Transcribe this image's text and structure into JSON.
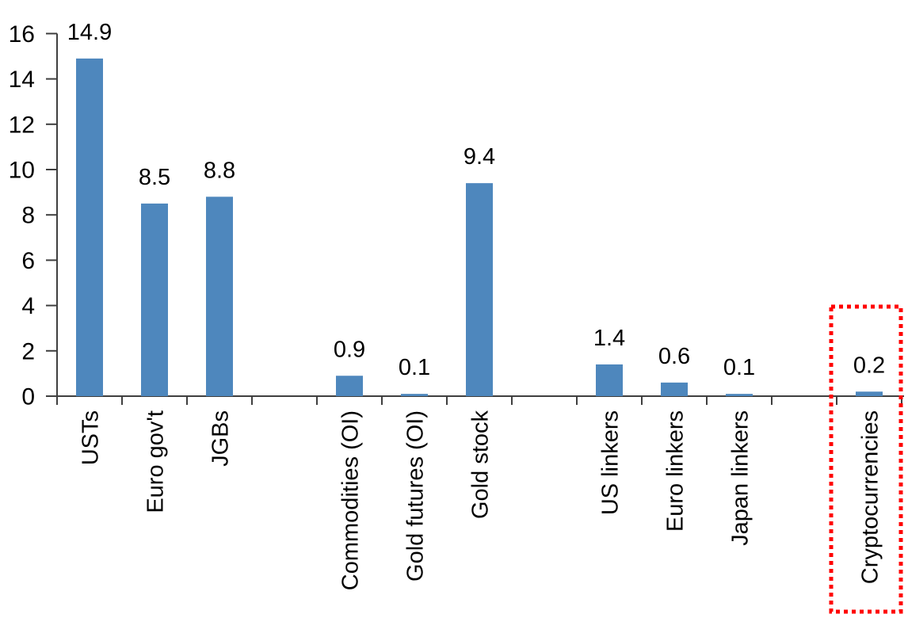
{
  "chart_data": {
    "type": "bar",
    "title": "",
    "xlabel": "",
    "ylabel": "",
    "groups": [
      {
        "categories": [
          "USTs",
          "Euro gov't",
          "JGBs"
        ],
        "values": [
          14.9,
          8.5,
          8.8
        ]
      },
      {
        "categories": [
          "Commodities (OI)",
          "Gold futures (OI)",
          "Gold stock"
        ],
        "values": [
          0.9,
          0.1,
          9.4
        ]
      },
      {
        "categories": [
          "US linkers",
          "Euro linkers",
          "Japan linkers"
        ],
        "values": [
          1.4,
          0.6,
          0.1
        ]
      },
      {
        "categories": [
          "Cryptocurrencies"
        ],
        "values": [
          0.2
        ]
      }
    ],
    "data_labels": [
      14.9,
      8.5,
      8.8,
      0.9,
      0.1,
      9.4,
      1.4,
      0.6,
      0.1,
      0.2
    ],
    "ylim": [
      0,
      16
    ],
    "yticks": [
      0,
      2,
      4,
      6,
      8,
      10,
      12,
      14,
      16
    ],
    "grid": "off",
    "legend": "none",
    "category_label_rotation_deg": -90,
    "colors": {
      "bar": "#4e87bd",
      "axis": "#3f3f3f",
      "text": "#000000",
      "highlight_box": "#ff0000"
    },
    "highlight": {
      "category": "Cryptocurrencies",
      "value_label": "0.2",
      "box_style": "square-dotted",
      "box_color": "#ff0000"
    }
  }
}
